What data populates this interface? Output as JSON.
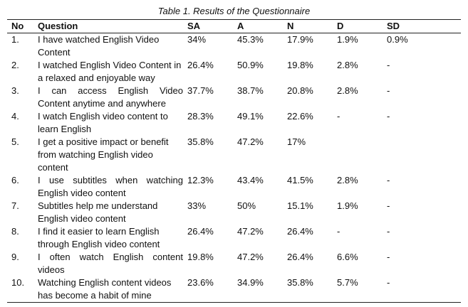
{
  "caption": "Table 1. Results of the Questionnaire",
  "columns": {
    "no": "No",
    "question": "Question",
    "sa": "SA",
    "a": "A",
    "n": "N",
    "d": "D",
    "sd": "SD"
  },
  "rows": [
    {
      "no": "1.",
      "question": "I have watched English Video Content",
      "sa": "34%",
      "a": "45.3%",
      "n": "17.9%",
      "d": "1.9%",
      "sd": "0.9%"
    },
    {
      "no": "2.",
      "question": "I watched English Video Content in a relaxed and enjoyable way",
      "sa": "26.4%",
      "a": "50.9%",
      "n": "19.8%",
      "d": "2.8%",
      "sd": "-"
    },
    {
      "no": "3.",
      "question": "I can access English Video Content anytime and anywhere",
      "sa": "37.7%",
      "a": "38.7%",
      "n": "20.8%",
      "d": "2.8%",
      "sd": "-"
    },
    {
      "no": "4.",
      "question": "I watch English video content to learn English",
      "sa": "28.3%",
      "a": "49.1%",
      "n": "22.6%",
      "d": "-",
      "sd": "-"
    },
    {
      "no": "5.",
      "question": "I get a positive impact or benefit from watching English video content",
      "sa": "35.8%",
      "a": "47.2%",
      "n": "17%",
      "d": "",
      "sd": ""
    },
    {
      "no": "6.",
      "question": "I use subtitles when watching English video content",
      "sa": "12.3%",
      "a": "43.4%",
      "n": "41.5%",
      "d": "2.8%",
      "sd": "-"
    },
    {
      "no": "7.",
      "question": "Subtitles help me understand English video content",
      "sa": "33%",
      "a": "50%",
      "n": "15.1%",
      "d": "1.9%",
      "sd": "-"
    },
    {
      "no": "8.",
      "question": "I find it easier to learn English through English video content",
      "sa": "26.4%",
      "a": "47.2%",
      "n": "26.4%",
      "d": "-",
      "sd": "-"
    },
    {
      "no": "9.",
      "question": "I often watch English content videos",
      "sa": "19.8%",
      "a": "47.2%",
      "n": "26.4%",
      "d": "6.6%",
      "sd": "-"
    },
    {
      "no": "10.",
      "question": "Watching English content videos has become a habit of mine",
      "sa": "23.6%",
      "a": "34.9%",
      "n": "35.8%",
      "d": "5.7%",
      "sd": "-"
    }
  ]
}
